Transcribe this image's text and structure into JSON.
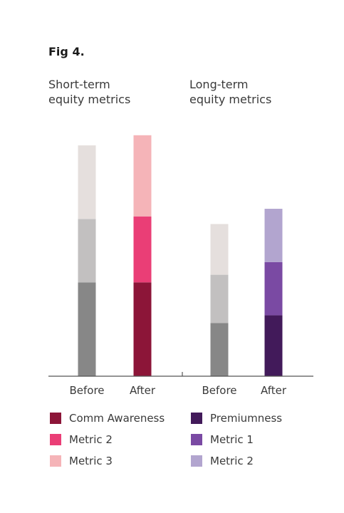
{
  "figure": {
    "label": "Fig 4."
  },
  "chart_data": {
    "type": "bar",
    "stacked": true,
    "groups": [
      {
        "title_lines": [
          "Short-term",
          "equity metrics"
        ],
        "categories": [
          "Before",
          "After"
        ],
        "bars": [
          {
            "category": "Before",
            "segments": [
              {
                "value": 37,
                "color": "#878787"
              },
              {
                "value": 25,
                "color": "#c2c0c0"
              },
              {
                "value": 29,
                "color": "#e5dfdd"
              }
            ]
          },
          {
            "category": "After",
            "segments": [
              {
                "value": 37,
                "color": "#8c1538",
                "series": "Comm Awareness"
              },
              {
                "value": 26,
                "color": "#ea3e76",
                "series": "Metric 2"
              },
              {
                "value": 32,
                "color": "#f5b4b8",
                "series": "Metric 3"
              }
            ]
          }
        ]
      },
      {
        "title_lines": [
          "Long-term",
          "equity metrics"
        ],
        "categories": [
          "Before",
          "After"
        ],
        "bars": [
          {
            "category": "Before",
            "segments": [
              {
                "value": 21,
                "color": "#878787"
              },
              {
                "value": 19,
                "color": "#c2c0c0"
              },
              {
                "value": 20,
                "color": "#e5dfdd"
              }
            ]
          },
          {
            "category": "After",
            "segments": [
              {
                "value": 24,
                "color": "#421a5a",
                "series": "Premiumness"
              },
              {
                "value": 21,
                "color": "#7a4aa3",
                "series": "Metric 1"
              },
              {
                "value": 21,
                "color": "#b2a5cf",
                "series": "Metric 2"
              }
            ]
          }
        ]
      }
    ],
    "ylim": [
      0,
      100
    ],
    "grid": false,
    "legend": {
      "placement": "bottom",
      "items": [
        {
          "label": "Comm Awareness",
          "color": "#8c1538"
        },
        {
          "label": "Premiumness",
          "color": "#421a5a"
        },
        {
          "label": "Metric 2",
          "color": "#ea3e76"
        },
        {
          "label": "Metric 1",
          "color": "#7a4aa3"
        },
        {
          "label": "Metric 3",
          "color": "#f5b4b8"
        },
        {
          "label": "Metric 2",
          "color": "#b2a5cf"
        }
      ]
    }
  }
}
